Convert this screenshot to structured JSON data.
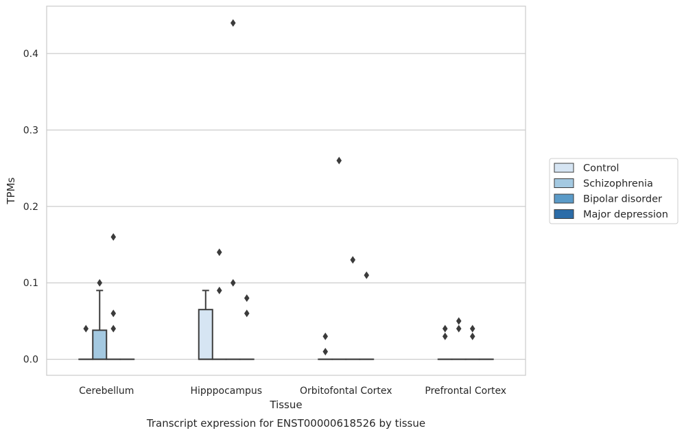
{
  "chart_data": {
    "type": "box",
    "caption": "Transcript expression for ENST00000618526 by tissue",
    "xlabel": "Tissue",
    "ylabel": "TPMs",
    "ylim": [
      -0.021,
      0.462
    ],
    "yticks": [
      0.0,
      0.1,
      0.2,
      0.3,
      0.4
    ],
    "ytick_labels": [
      "0.0",
      "0.1",
      "0.2",
      "0.3",
      "0.4"
    ],
    "grid": "horizontal",
    "legend_position": "right",
    "categories": [
      "Cerebellum",
      "Hipppocampus",
      "Orbitofontal Cortex",
      "Prefrontal Cortex"
    ],
    "series": [
      {
        "name": "Control",
        "color": "#d6e5f3",
        "boxes": [
          {
            "q1": 0,
            "median": 0,
            "q3": 0,
            "whisker_low": 0,
            "whisker_high": 0,
            "outliers": [
              0.04
            ]
          },
          {
            "q1": 0,
            "median": 0,
            "q3": 0.065,
            "whisker_low": 0,
            "whisker_high": 0.09,
            "outliers": []
          },
          {
            "q1": 0,
            "median": 0,
            "q3": 0,
            "whisker_low": 0,
            "whisker_high": 0,
            "outliers": [
              0.03,
              0.01
            ]
          },
          {
            "q1": 0,
            "median": 0,
            "q3": 0,
            "whisker_low": 0,
            "whisker_high": 0,
            "outliers": [
              0.04,
              0.03
            ]
          }
        ]
      },
      {
        "name": "Schizophrenia",
        "color": "#a4c9e1",
        "boxes": [
          {
            "q1": 0,
            "median": 0,
            "q3": 0.038,
            "whisker_low": 0,
            "whisker_high": 0.09,
            "outliers": [
              0.1
            ]
          },
          {
            "q1": 0,
            "median": 0,
            "q3": 0,
            "whisker_low": 0,
            "whisker_high": 0,
            "outliers": [
              0.14,
              0.09
            ]
          },
          {
            "q1": 0,
            "median": 0,
            "q3": 0,
            "whisker_low": 0,
            "whisker_high": 0,
            "outliers": [
              0.26
            ]
          },
          {
            "q1": 0,
            "median": 0,
            "q3": 0,
            "whisker_low": 0,
            "whisker_high": 0,
            "outliers": [
              0.05,
              0.04
            ]
          }
        ]
      },
      {
        "name": "Bipolar disorder",
        "color": "#5b9bc8",
        "boxes": [
          {
            "q1": 0,
            "median": 0,
            "q3": 0,
            "whisker_low": 0,
            "whisker_high": 0,
            "outliers": [
              0.16,
              0.06,
              0.04
            ]
          },
          {
            "q1": 0,
            "median": 0,
            "q3": 0,
            "whisker_low": 0,
            "whisker_high": 0,
            "outliers": [
              0.44,
              0.1
            ]
          },
          {
            "q1": 0,
            "median": 0,
            "q3": 0,
            "whisker_low": 0,
            "whisker_high": 0,
            "outliers": [
              0.13
            ]
          },
          {
            "q1": 0,
            "median": 0,
            "q3": 0,
            "whisker_low": 0,
            "whisker_high": 0,
            "outliers": [
              0.04,
              0.03
            ]
          }
        ]
      },
      {
        "name": "Major depression",
        "color": "#2b6ca8",
        "boxes": [
          {
            "q1": 0,
            "median": 0,
            "q3": 0,
            "whisker_low": 0,
            "whisker_high": 0,
            "outliers": []
          },
          {
            "q1": 0,
            "median": 0,
            "q3": 0,
            "whisker_low": 0,
            "whisker_high": 0,
            "outliers": [
              0.08,
              0.06
            ]
          },
          {
            "q1": 0,
            "median": 0,
            "q3": 0,
            "whisker_low": 0,
            "whisker_high": 0,
            "outliers": [
              0.11
            ]
          },
          {
            "q1": 0,
            "median": 0,
            "q3": 0,
            "whisker_low": 0,
            "whisker_high": 0,
            "outliers": []
          }
        ]
      }
    ]
  }
}
